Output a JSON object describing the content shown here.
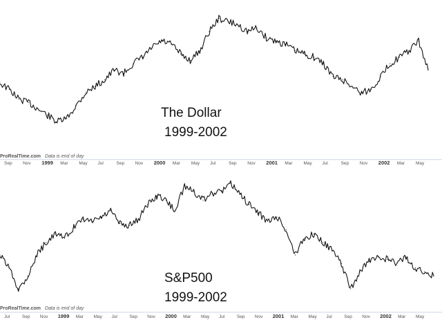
{
  "chart_data": [
    {
      "type": "line",
      "title": "The Dollar",
      "subtitle": "1999-2002",
      "credit": "ProRealTime.com",
      "credit_note": "Data is end of day",
      "grid": false,
      "x_ticks": [
        "Sep",
        "Nov",
        "1999",
        "Mar",
        "May",
        "Jul",
        "Sep",
        "Nov",
        "2000",
        "Mar",
        "May",
        "Jul",
        "Sep",
        "Nov",
        "2001",
        "Mar",
        "May",
        "Jul",
        "Sep",
        "Nov",
        "2002",
        "Mar",
        "May"
      ],
      "x": [
        "1998-09",
        "1998-10",
        "1998-11",
        "1998-12",
        "1999-01",
        "1999-02",
        "1999-03",
        "1999-04",
        "1999-05",
        "1999-06",
        "1999-07",
        "1999-08",
        "1999-09",
        "1999-10",
        "1999-11",
        "1999-12",
        "2000-01",
        "2000-02",
        "2000-03",
        "2000-04",
        "2000-05",
        "2000-06",
        "2000-07",
        "2000-08",
        "2000-09",
        "2000-10",
        "2000-11",
        "2000-12",
        "2001-01",
        "2001-02",
        "2001-03",
        "2001-04",
        "2001-05",
        "2001-06",
        "2001-07",
        "2001-08",
        "2001-09",
        "2001-10",
        "2001-11",
        "2001-12",
        "2002-01",
        "2002-02",
        "2002-03",
        "2002-04",
        "2002-05",
        "2002-06"
      ],
      "series": [
        {
          "values": [
            92,
            88,
            82,
            80,
            76,
            72,
            68,
            70,
            78,
            86,
            90,
            94,
            100,
            98,
            104,
            108,
            114,
            118,
            116,
            110,
            106,
            112,
            124,
            132,
            130,
            128,
            124,
            126,
            120,
            118,
            116,
            112,
            110,
            108,
            104,
            96,
            94,
            90,
            86,
            88,
            96,
            104,
            108,
            112,
            118,
            100
          ]
        }
      ],
      "ylim": [
        60,
        140
      ]
    },
    {
      "type": "line",
      "title": "S&P500",
      "subtitle": "1999-2002",
      "credit": "ProRealTime.com",
      "credit_note": "Data is end of day",
      "grid": false,
      "x_ticks": [
        "Jul",
        "Sep",
        "Nov",
        "1999",
        "Mar",
        "May",
        "Jul",
        "Sep",
        "Nov",
        "2000",
        "Mar",
        "May",
        "Jul",
        "Sep",
        "Nov",
        "2001",
        "Mar",
        "May",
        "Jul",
        "Sep",
        "Nov",
        "2002",
        "Mar",
        "May"
      ],
      "x": [
        "1998-07",
        "1998-08",
        "1998-09",
        "1998-10",
        "1998-11",
        "1998-12",
        "1999-01",
        "1999-02",
        "1999-03",
        "1999-04",
        "1999-05",
        "1999-06",
        "1999-07",
        "1999-08",
        "1999-09",
        "1999-10",
        "1999-11",
        "1999-12",
        "2000-01",
        "2000-02",
        "2000-03",
        "2000-04",
        "2000-05",
        "2000-06",
        "2000-07",
        "2000-08",
        "2000-09",
        "2000-10",
        "2000-11",
        "2000-12",
        "2001-01",
        "2001-02",
        "2001-03",
        "2001-04",
        "2001-05",
        "2001-06",
        "2001-07",
        "2001-08",
        "2001-09",
        "2001-10",
        "2001-11",
        "2001-12",
        "2002-01",
        "2002-02",
        "2002-03",
        "2002-04",
        "2002-05",
        "2002-06"
      ],
      "series": [
        {
          "values": [
            1160,
            1100,
            1000,
            1060,
            1160,
            1220,
            1260,
            1240,
            1290,
            1330,
            1320,
            1340,
            1370,
            1310,
            1300,
            1330,
            1400,
            1440,
            1420,
            1370,
            1490,
            1460,
            1420,
            1450,
            1460,
            1500,
            1450,
            1400,
            1360,
            1320,
            1340,
            1280,
            1160,
            1240,
            1260,
            1220,
            1180,
            1120,
            1000,
            1080,
            1130,
            1150,
            1140,
            1120,
            1150,
            1100,
            1080,
            1060
          ]
        }
      ],
      "ylim": [
        950,
        1560
      ]
    }
  ]
}
